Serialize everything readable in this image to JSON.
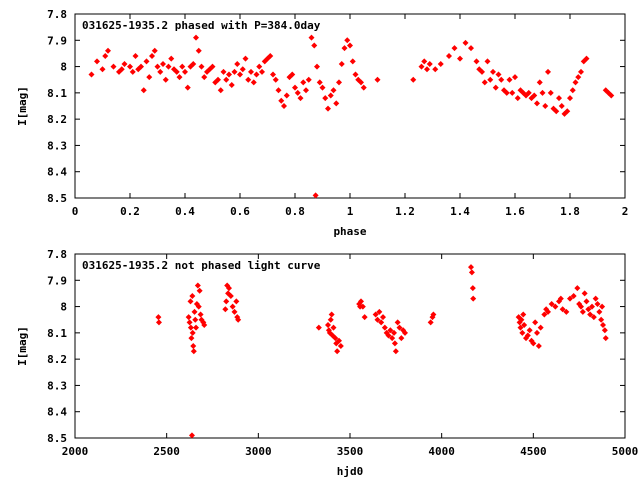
{
  "chart_data": [
    {
      "type": "scatter",
      "title": "031625-1935.2 phased with P=384.0day",
      "xlabel": "phase",
      "ylabel": "I[mag]",
      "xlim": [
        0,
        2
      ],
      "ylim": [
        8.5,
        7.8
      ],
      "y_inverted": true,
      "x_ticks": [
        "0",
        "0.2",
        "0.4",
        "0.6",
        "0.8",
        "1",
        "1.2",
        "1.4",
        "1.6",
        "1.8",
        "2"
      ],
      "y_ticks": [
        "7.8",
        "7.9",
        "8",
        "8.1",
        "8.2",
        "8.3",
        "8.4",
        "8.5"
      ],
      "color": "#ff0000",
      "points": [
        [
          0.06,
          8.03
        ],
        [
          0.08,
          7.98
        ],
        [
          0.1,
          8.01
        ],
        [
          0.11,
          7.96
        ],
        [
          0.12,
          7.94
        ],
        [
          0.14,
          8.0
        ],
        [
          0.16,
          8.02
        ],
        [
          0.17,
          8.01
        ],
        [
          0.18,
          7.99
        ],
        [
          0.2,
          8.0
        ],
        [
          0.21,
          8.02
        ],
        [
          0.22,
          7.96
        ],
        [
          0.23,
          8.01
        ],
        [
          0.24,
          8.0
        ],
        [
          0.25,
          8.09
        ],
        [
          0.26,
          7.98
        ],
        [
          0.27,
          8.04
        ],
        [
          0.28,
          7.96
        ],
        [
          0.29,
          7.94
        ],
        [
          0.3,
          8.0
        ],
        [
          0.31,
          8.02
        ],
        [
          0.32,
          7.99
        ],
        [
          0.33,
          8.05
        ],
        [
          0.34,
          8.0
        ],
        [
          0.35,
          7.97
        ],
        [
          0.36,
          8.01
        ],
        [
          0.37,
          8.02
        ],
        [
          0.38,
          8.04
        ],
        [
          0.39,
          8.0
        ],
        [
          0.4,
          8.02
        ],
        [
          0.41,
          8.08
        ],
        [
          0.42,
          8.0
        ],
        [
          0.43,
          7.99
        ],
        [
          0.44,
          7.89
        ],
        [
          0.45,
          7.94
        ],
        [
          0.46,
          8.0
        ],
        [
          0.47,
          8.04
        ],
        [
          0.48,
          8.02
        ],
        [
          0.49,
          8.01
        ],
        [
          0.5,
          8.0
        ],
        [
          0.51,
          8.06
        ],
        [
          0.52,
          8.05
        ],
        [
          0.53,
          8.09
        ],
        [
          0.54,
          8.02
        ],
        [
          0.55,
          8.05
        ],
        [
          0.56,
          8.03
        ],
        [
          0.57,
          8.07
        ],
        [
          0.58,
          8.02
        ],
        [
          0.59,
          7.99
        ],
        [
          0.6,
          8.03
        ],
        [
          0.61,
          8.01
        ],
        [
          0.62,
          7.97
        ],
        [
          0.63,
          8.05
        ],
        [
          0.64,
          8.02
        ],
        [
          0.65,
          8.06
        ],
        [
          0.66,
          8.03
        ],
        [
          0.67,
          8.0
        ],
        [
          0.68,
          8.02
        ],
        [
          0.69,
          7.98
        ],
        [
          0.7,
          7.97
        ],
        [
          0.71,
          7.96
        ],
        [
          0.72,
          8.03
        ],
        [
          0.73,
          8.05
        ],
        [
          0.74,
          8.09
        ],
        [
          0.75,
          8.13
        ],
        [
          0.76,
          8.15
        ],
        [
          0.77,
          8.11
        ],
        [
          0.78,
          8.04
        ],
        [
          0.79,
          8.03
        ],
        [
          0.8,
          8.08
        ],
        [
          0.81,
          8.1
        ],
        [
          0.82,
          8.12
        ],
        [
          0.83,
          8.06
        ],
        [
          0.84,
          8.09
        ],
        [
          0.85,
          8.05
        ],
        [
          0.86,
          7.89
        ],
        [
          0.87,
          7.92
        ],
        [
          0.875,
          8.49
        ],
        [
          0.88,
          8.0
        ],
        [
          0.89,
          8.06
        ],
        [
          0.9,
          8.08
        ],
        [
          0.91,
          8.12
        ],
        [
          0.92,
          8.16
        ],
        [
          0.93,
          8.11
        ],
        [
          0.94,
          8.09
        ],
        [
          0.95,
          8.14
        ],
        [
          0.96,
          8.06
        ],
        [
          0.97,
          7.99
        ],
        [
          0.98,
          7.93
        ],
        [
          0.99,
          7.9
        ],
        [
          1.0,
          7.92
        ],
        [
          1.01,
          7.98
        ],
        [
          1.02,
          8.03
        ],
        [
          1.03,
          8.05
        ],
        [
          1.04,
          8.06
        ],
        [
          1.05,
          8.08
        ],
        [
          1.1,
          8.05
        ],
        [
          1.23,
          8.05
        ],
        [
          1.26,
          8.0
        ],
        [
          1.27,
          7.98
        ],
        [
          1.28,
          8.01
        ],
        [
          1.29,
          7.99
        ],
        [
          1.31,
          8.01
        ],
        [
          1.33,
          7.99
        ],
        [
          1.36,
          7.96
        ],
        [
          1.38,
          7.93
        ],
        [
          1.4,
          7.97
        ],
        [
          1.42,
          7.91
        ],
        [
          1.44,
          7.93
        ],
        [
          1.46,
          7.98
        ],
        [
          1.47,
          8.01
        ],
        [
          1.48,
          8.02
        ],
        [
          1.49,
          8.06
        ],
        [
          1.5,
          7.98
        ],
        [
          1.51,
          8.05
        ],
        [
          1.52,
          8.02
        ],
        [
          1.53,
          8.08
        ],
        [
          1.54,
          8.03
        ],
        [
          1.55,
          8.05
        ],
        [
          1.56,
          8.09
        ],
        [
          1.57,
          8.1
        ],
        [
          1.58,
          8.05
        ],
        [
          1.59,
          8.1
        ],
        [
          1.6,
          8.04
        ],
        [
          1.61,
          8.12
        ],
        [
          1.62,
          8.09
        ],
        [
          1.63,
          8.1
        ],
        [
          1.64,
          8.11
        ],
        [
          1.65,
          8.1
        ],
        [
          1.66,
          8.12
        ],
        [
          1.67,
          8.11
        ],
        [
          1.68,
          8.14
        ],
        [
          1.69,
          8.06
        ],
        [
          1.7,
          8.1
        ],
        [
          1.71,
          8.15
        ],
        [
          1.72,
          8.02
        ],
        [
          1.73,
          8.1
        ],
        [
          1.74,
          8.16
        ],
        [
          1.75,
          8.17
        ],
        [
          1.76,
          8.12
        ],
        [
          1.77,
          8.15
        ],
        [
          1.78,
          8.18
        ],
        [
          1.79,
          8.17
        ],
        [
          1.8,
          8.12
        ],
        [
          1.81,
          8.09
        ],
        [
          1.82,
          8.06
        ],
        [
          1.83,
          8.04
        ],
        [
          1.84,
          8.02
        ],
        [
          1.85,
          7.98
        ],
        [
          1.86,
          7.97
        ],
        [
          1.93,
          8.09
        ],
        [
          1.94,
          8.1
        ],
        [
          1.95,
          8.11
        ]
      ]
    },
    {
      "type": "scatter",
      "title": "031625-1935.2 not phased light curve",
      "xlabel": "hjd0",
      "ylabel": "I[mag]",
      "xlim": [
        2000,
        5000
      ],
      "ylim": [
        8.5,
        7.8
      ],
      "y_inverted": true,
      "x_ticks": [
        "2000",
        "2500",
        "3000",
        "3500",
        "4000",
        "4500",
        "5000"
      ],
      "y_ticks": [
        "7.8",
        "7.9",
        "8",
        "8.1",
        "8.2",
        "8.3",
        "8.4",
        "8.5"
      ],
      "color": "#ff0000",
      "points": [
        [
          2455,
          8.04
        ],
        [
          2458,
          8.06
        ],
        [
          2620,
          8.04
        ],
        [
          2625,
          8.06
        ],
        [
          2630,
          7.98
        ],
        [
          2632,
          8.08
        ],
        [
          2635,
          8.12
        ],
        [
          2638,
          8.49
        ],
        [
          2640,
          7.96
        ],
        [
          2642,
          8.1
        ],
        [
          2645,
          8.15
        ],
        [
          2648,
          8.17
        ],
        [
          2652,
          8.02
        ],
        [
          2656,
          8.05
        ],
        [
          2660,
          8.08
        ],
        [
          2665,
          7.99
        ],
        [
          2670,
          7.92
        ],
        [
          2675,
          8.0
        ],
        [
          2680,
          7.94
        ],
        [
          2685,
          8.03
        ],
        [
          2690,
          8.05
        ],
        [
          2700,
          8.06
        ],
        [
          2705,
          8.07
        ],
        [
          2820,
          8.01
        ],
        [
          2825,
          7.98
        ],
        [
          2830,
          7.92
        ],
        [
          2835,
          7.95
        ],
        [
          2840,
          7.93
        ],
        [
          2850,
          7.96
        ],
        [
          2860,
          8.0
        ],
        [
          2870,
          8.02
        ],
        [
          2880,
          7.98
        ],
        [
          2885,
          8.04
        ],
        [
          2890,
          8.05
        ],
        [
          3330,
          8.08
        ],
        [
          3380,
          8.07
        ],
        [
          3385,
          8.09
        ],
        [
          3390,
          8.1
        ],
        [
          3395,
          8.05
        ],
        [
          3400,
          8.03
        ],
        [
          3405,
          8.11
        ],
        [
          3410,
          8.08
        ],
        [
          3420,
          8.12
        ],
        [
          3425,
          8.14
        ],
        [
          3430,
          8.17
        ],
        [
          3440,
          8.13
        ],
        [
          3450,
          8.15
        ],
        [
          3550,
          7.99
        ],
        [
          3555,
          8.0
        ],
        [
          3560,
          7.98
        ],
        [
          3570,
          8.0
        ],
        [
          3580,
          8.04
        ],
        [
          3640,
          8.03
        ],
        [
          3650,
          8.05
        ],
        [
          3660,
          8.02
        ],
        [
          3670,
          8.06
        ],
        [
          3680,
          8.04
        ],
        [
          3690,
          8.08
        ],
        [
          3700,
          8.1
        ],
        [
          3710,
          8.11
        ],
        [
          3720,
          8.09
        ],
        [
          3730,
          8.12
        ],
        [
          3740,
          8.1
        ],
        [
          3745,
          8.14
        ],
        [
          3750,
          8.17
        ],
        [
          3760,
          8.06
        ],
        [
          3770,
          8.08
        ],
        [
          3780,
          8.12
        ],
        [
          3790,
          8.09
        ],
        [
          3800,
          8.1
        ],
        [
          3940,
          8.06
        ],
        [
          3950,
          8.04
        ],
        [
          3955,
          8.03
        ],
        [
          4160,
          7.85
        ],
        [
          4165,
          7.87
        ],
        [
          4170,
          7.93
        ],
        [
          4172,
          7.97
        ],
        [
          4420,
          8.04
        ],
        [
          4425,
          8.06
        ],
        [
          4430,
          8.08
        ],
        [
          4435,
          8.05
        ],
        [
          4440,
          8.1
        ],
        [
          4445,
          8.03
        ],
        [
          4450,
          8.07
        ],
        [
          4460,
          8.12
        ],
        [
          4470,
          8.11
        ],
        [
          4480,
          8.09
        ],
        [
          4490,
          8.13
        ],
        [
          4500,
          8.14
        ],
        [
          4510,
          8.06
        ],
        [
          4520,
          8.1
        ],
        [
          4530,
          8.15
        ],
        [
          4540,
          8.08
        ],
        [
          4560,
          8.03
        ],
        [
          4570,
          8.01
        ],
        [
          4580,
          8.02
        ],
        [
          4600,
          7.99
        ],
        [
          4620,
          8.0
        ],
        [
          4640,
          7.98
        ],
        [
          4650,
          7.97
        ],
        [
          4660,
          8.01
        ],
        [
          4680,
          8.02
        ],
        [
          4700,
          7.97
        ],
        [
          4720,
          7.96
        ],
        [
          4740,
          7.93
        ],
        [
          4750,
          7.99
        ],
        [
          4760,
          8.0
        ],
        [
          4770,
          8.02
        ],
        [
          4780,
          7.95
        ],
        [
          4790,
          7.98
        ],
        [
          4800,
          8.01
        ],
        [
          4810,
          8.03
        ],
        [
          4820,
          8.0
        ],
        [
          4830,
          8.04
        ],
        [
          4840,
          7.97
        ],
        [
          4850,
          7.99
        ],
        [
          4860,
          8.02
        ],
        [
          4870,
          8.05
        ],
        [
          4875,
          8.0
        ],
        [
          4880,
          8.07
        ],
        [
          4890,
          8.09
        ],
        [
          4895,
          8.12
        ]
      ]
    }
  ]
}
